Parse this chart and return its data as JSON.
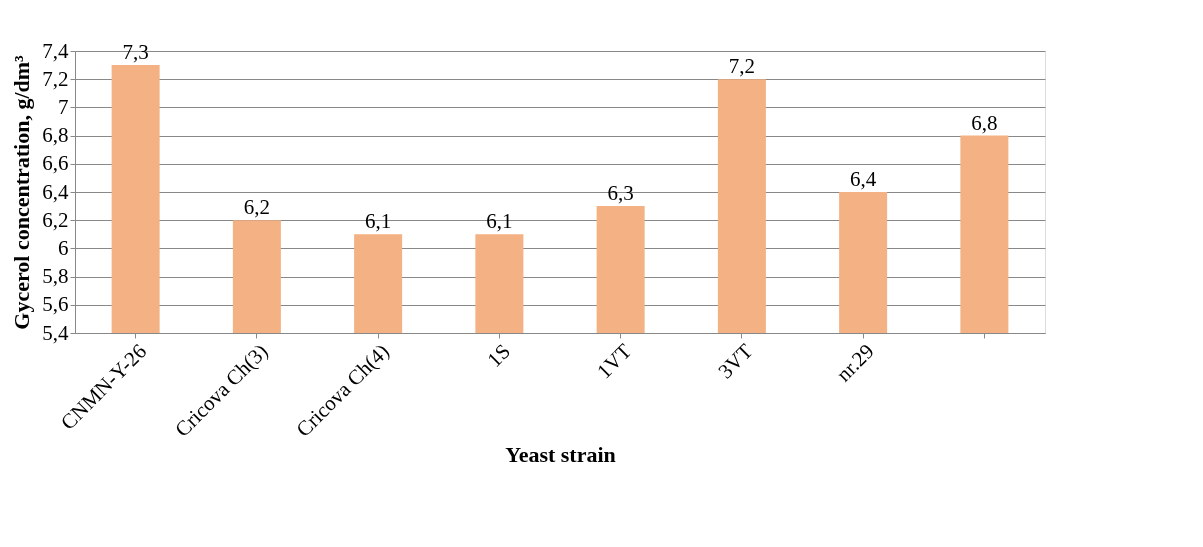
{
  "chart_data": {
    "type": "bar",
    "xlabel": "Yeast strain",
    "ylabel": "Gycerol concentration, g/dm³",
    "categories": [
      "CNMN-Y-26",
      "Cricova Ch(3)",
      "Cricova Ch(4)",
      "1S",
      "1VT",
      "3VT",
      "nr.29",
      null
    ],
    "values": [
      7.3,
      6.2,
      6.1,
      6.1,
      6.3,
      7.2,
      6.4,
      6.8
    ],
    "value_labels": [
      "7,3",
      "6,2",
      "6,1",
      "6,1",
      "6,3",
      "7,2",
      "6,4",
      "6,8"
    ],
    "color": "#f4b183",
    "ylim": [
      5.4,
      7.4
    ],
    "yticks": [
      {
        "value": 5.4,
        "label": "5,4"
      },
      {
        "value": 5.6,
        "label": "5,6"
      },
      {
        "value": 5.8,
        "label": "5,8"
      },
      6,
      {
        "value": 6.2,
        "label": "6,2"
      },
      {
        "value": 6.4,
        "label": "6,4"
      },
      {
        "value": 6.6,
        "label": "6,6"
      },
      {
        "value": 6.8,
        "label": "6,8"
      },
      7,
      {
        "value": 7.2,
        "label": "7,2"
      },
      {
        "value": 7.4,
        "label": "7,4"
      }
    ],
    "grid": "y"
  }
}
